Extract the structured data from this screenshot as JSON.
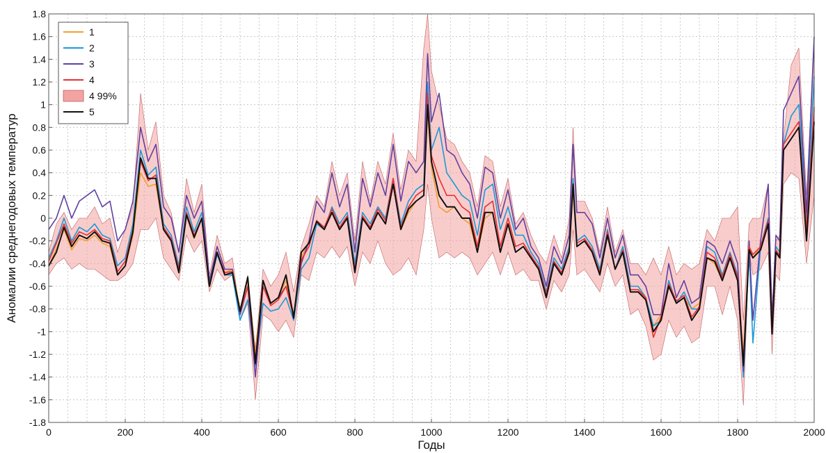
{
  "chart_data": {
    "type": "line",
    "title": "",
    "xlabel": "Годы",
    "ylabel": "Аномалии среднегодовых температур",
    "xlim": [
      0,
      2000
    ],
    "ylim": [
      -1.8,
      1.8
    ],
    "x_ticks": [
      "0",
      "200",
      "400",
      "600",
      "800",
      "1000",
      "1200",
      "1400",
      "1600",
      "1800",
      "2000"
    ],
    "y_ticks": [
      "1.8",
      "1.6",
      "1.4",
      "1.2",
      "1",
      "0.8",
      "0.6",
      "0.4",
      "0.2",
      "0",
      "-0.2",
      "-0.4",
      "-0.6",
      "-0.8",
      "-1",
      "-1.2",
      "-1.4",
      "-1.6",
      "-1.8"
    ],
    "grid": true,
    "legend_position": "top-left",
    "x": [
      0,
      20,
      40,
      60,
      80,
      100,
      120,
      140,
      160,
      180,
      200,
      220,
      240,
      260,
      280,
      300,
      320,
      340,
      360,
      380,
      400,
      420,
      440,
      460,
      480,
      500,
      520,
      540,
      560,
      580,
      600,
      620,
      640,
      660,
      680,
      700,
      720,
      740,
      760,
      780,
      800,
      820,
      840,
      860,
      880,
      900,
      920,
      940,
      960,
      980,
      990,
      1000,
      1020,
      1040,
      1060,
      1080,
      1100,
      1120,
      1140,
      1160,
      1180,
      1200,
      1220,
      1240,
      1260,
      1280,
      1300,
      1320,
      1340,
      1360,
      1370,
      1380,
      1400,
      1420,
      1440,
      1460,
      1480,
      1500,
      1520,
      1540,
      1560,
      1580,
      1600,
      1620,
      1640,
      1660,
      1680,
      1700,
      1720,
      1740,
      1760,
      1780,
      1800,
      1815,
      1830,
      1840,
      1860,
      1880,
      1890,
      1900,
      1910,
      1920,
      1940,
      1960,
      1980,
      2000
    ],
    "band": {
      "name": "4 99%",
      "color": "#f4a3a3",
      "upper": [
        -0.3,
        -0.05,
        0.05,
        -0.1,
        0.0,
        0.0,
        0.1,
        -0.05,
        0.0,
        -0.3,
        -0.1,
        0.1,
        1.1,
        0.6,
        0.85,
        0.2,
        0.05,
        -0.3,
        0.35,
        0.05,
        0.3,
        -0.5,
        -0.15,
        -0.4,
        -0.35,
        -0.85,
        -0.5,
        -1.15,
        -0.45,
        -0.6,
        -0.5,
        -0.3,
        -0.65,
        -0.25,
        -0.05,
        0.2,
        0.1,
        0.5,
        0.2,
        0.4,
        -0.2,
        0.5,
        0.15,
        0.5,
        0.3,
        0.75,
        0.25,
        0.6,
        0.5,
        1.5,
        1.8,
        1.3,
        1.0,
        0.7,
        0.65,
        0.5,
        0.4,
        0.1,
        0.55,
        0.5,
        0.1,
        0.35,
        -0.05,
        0.05,
        -0.15,
        -0.3,
        -0.4,
        -0.15,
        -0.35,
        0.0,
        0.8,
        0.15,
        0.15,
        0.0,
        -0.3,
        0.1,
        -0.3,
        -0.1,
        -0.4,
        -0.4,
        -0.5,
        -0.35,
        -0.5,
        -0.25,
        -0.5,
        -0.4,
        -0.45,
        -0.4,
        -0.1,
        -0.2,
        0.0,
        0.0,
        0.1,
        -0.9,
        -0.05,
        0.0,
        0.0,
        0.3,
        -0.8,
        -0.2,
        -0.15,
        0.7,
        1.35,
        1.5,
        0.2,
        1.6
      ],
      "lower": [
        -0.5,
        -0.4,
        -0.35,
        -0.45,
        -0.4,
        -0.45,
        -0.45,
        -0.5,
        -0.55,
        -0.55,
        -0.5,
        -0.4,
        -0.1,
        -0.1,
        0.0,
        -0.35,
        -0.45,
        -0.55,
        -0.15,
        -0.3,
        -0.2,
        -0.65,
        -0.45,
        -0.55,
        -0.5,
        -0.9,
        -0.75,
        -1.6,
        -0.85,
        -0.9,
        -1.0,
        -0.9,
        -1.05,
        -0.5,
        -0.55,
        -0.3,
        -0.35,
        -0.25,
        -0.35,
        -0.25,
        -0.6,
        -0.3,
        -0.4,
        -0.2,
        -0.4,
        -0.5,
        -0.45,
        -0.35,
        -0.5,
        -0.1,
        0.3,
        0.0,
        -0.35,
        -0.3,
        -0.35,
        -0.3,
        -0.35,
        -0.5,
        -0.4,
        -0.3,
        -0.5,
        -0.3,
        -0.5,
        -0.45,
        -0.55,
        -0.55,
        -0.8,
        -0.55,
        -0.65,
        -0.5,
        -0.1,
        -0.5,
        -0.45,
        -0.55,
        -0.65,
        -0.4,
        -0.6,
        -0.5,
        -0.85,
        -0.8,
        -0.95,
        -1.25,
        -1.2,
        -0.9,
        -1.05,
        -0.95,
        -1.1,
        -1.05,
        -0.6,
        -0.6,
        -0.85,
        -0.6,
        -0.9,
        -1.65,
        -0.3,
        -0.5,
        -0.45,
        -0.3,
        -1.2,
        -0.5,
        -0.55,
        0.3,
        0.4,
        0.35,
        -0.4,
        0.2
      ]
    },
    "series": [
      {
        "name": "1",
        "color": "#f0a030",
        "values": [
          -0.42,
          -0.27,
          -0.1,
          -0.28,
          -0.18,
          -0.2,
          -0.15,
          -0.22,
          -0.25,
          -0.5,
          -0.42,
          -0.15,
          0.4,
          0.28,
          0.3,
          -0.1,
          -0.2,
          -0.48,
          0.02,
          -0.18,
          0.0,
          -0.6,
          -0.3,
          -0.48,
          -0.45,
          -0.8,
          -0.55,
          -1.2,
          -0.55,
          -0.75,
          -0.7,
          -0.55,
          -0.85,
          -0.35,
          -0.2,
          -0.05,
          -0.1,
          0.05,
          -0.1,
          0.0,
          -0.45,
          0.0,
          -0.1,
          0.05,
          -0.05,
          0.3,
          -0.1,
          0.05,
          0.15,
          0.2,
          0.95,
          0.45,
          0.1,
          0.05,
          0.1,
          0.0,
          -0.05,
          -0.3,
          0.0,
          0.05,
          -0.3,
          -0.05,
          -0.3,
          -0.25,
          -0.35,
          -0.45,
          -0.65,
          -0.4,
          -0.5,
          -0.3,
          0.25,
          -0.25,
          -0.2,
          -0.3,
          -0.5,
          -0.15,
          -0.45,
          -0.3,
          -0.65,
          -0.65,
          -0.7,
          -0.95,
          -0.85,
          -0.6,
          -0.75,
          -0.7,
          -0.8,
          -0.75,
          -0.35,
          -0.4,
          -0.55,
          -0.35,
          -0.55,
          -1.2,
          -0.25,
          -0.35,
          -0.25,
          -0.05,
          -0.9,
          -0.3,
          -0.35,
          0.6,
          0.7,
          0.8,
          -0.1,
          0.95
        ]
      },
      {
        "name": "2",
        "color": "#1a9ad6",
        "values": [
          -0.35,
          -0.2,
          0.0,
          -0.2,
          -0.08,
          -0.12,
          -0.05,
          -0.15,
          -0.18,
          -0.42,
          -0.35,
          -0.05,
          0.6,
          0.38,
          0.45,
          -0.05,
          -0.15,
          -0.42,
          0.1,
          -0.12,
          0.05,
          -0.6,
          -0.32,
          -0.5,
          -0.5,
          -0.9,
          -0.72,
          -1.3,
          -0.75,
          -0.82,
          -0.8,
          -0.7,
          -0.9,
          -0.45,
          -0.35,
          -0.05,
          -0.1,
          0.1,
          -0.05,
          0.05,
          -0.4,
          0.05,
          -0.05,
          0.1,
          0.0,
          0.35,
          -0.05,
          0.15,
          0.25,
          0.3,
          1.2,
          0.6,
          0.8,
          0.4,
          0.3,
          0.2,
          0.15,
          -0.15,
          0.25,
          0.3,
          -0.1,
          0.1,
          -0.15,
          -0.15,
          -0.3,
          -0.4,
          -0.65,
          -0.35,
          -0.45,
          -0.25,
          0.35,
          -0.2,
          -0.15,
          -0.25,
          -0.45,
          -0.1,
          -0.45,
          -0.25,
          -0.6,
          -0.6,
          -0.7,
          -0.95,
          -0.9,
          -0.55,
          -0.75,
          -0.65,
          -0.8,
          -0.8,
          -0.25,
          -0.3,
          -0.5,
          -0.3,
          -0.5,
          -1.4,
          -0.3,
          -1.1,
          -0.25,
          0.0,
          -0.95,
          -0.25,
          -0.3,
          0.65,
          0.9,
          1.0,
          0.0,
          1.25
        ]
      },
      {
        "name": "3",
        "color": "#6040a0",
        "values": [
          -0.1,
          0.0,
          0.2,
          0.0,
          0.15,
          0.2,
          0.25,
          0.1,
          0.15,
          -0.2,
          -0.1,
          0.15,
          0.8,
          0.5,
          0.65,
          0.1,
          0.0,
          -0.3,
          0.2,
          0.0,
          0.15,
          -0.55,
          -0.25,
          -0.45,
          -0.45,
          -0.85,
          -0.6,
          -1.4,
          -0.6,
          -0.75,
          -0.7,
          -0.6,
          -0.85,
          -0.4,
          -0.2,
          0.15,
          0.05,
          0.4,
          0.1,
          0.3,
          -0.3,
          0.35,
          0.1,
          0.4,
          0.2,
          0.65,
          0.15,
          0.5,
          0.4,
          0.5,
          1.45,
          0.85,
          1.1,
          0.6,
          0.55,
          0.4,
          0.3,
          0.0,
          0.45,
          0.4,
          0.0,
          0.25,
          -0.1,
          0.0,
          -0.25,
          -0.35,
          -0.6,
          -0.25,
          -0.4,
          -0.15,
          0.65,
          0.05,
          0.05,
          -0.05,
          -0.35,
          0.0,
          -0.35,
          -0.15,
          -0.5,
          -0.5,
          -0.6,
          -0.85,
          -0.85,
          -0.4,
          -0.7,
          -0.55,
          -0.75,
          -0.7,
          -0.2,
          -0.25,
          -0.4,
          -0.2,
          -0.4,
          -1.35,
          -0.2,
          -0.9,
          -0.2,
          0.3,
          -0.9,
          -0.15,
          -0.2,
          0.95,
          1.1,
          1.25,
          0.05,
          1.6
        ]
      },
      {
        "name": "4",
        "color": "#e83030",
        "values": [
          -0.38,
          -0.22,
          -0.05,
          -0.22,
          -0.12,
          -0.15,
          -0.1,
          -0.18,
          -0.2,
          -0.47,
          -0.38,
          -0.1,
          0.5,
          0.33,
          0.38,
          -0.08,
          -0.18,
          -0.45,
          0.05,
          -0.15,
          0.0,
          -0.6,
          -0.3,
          -0.48,
          -0.47,
          -0.82,
          -0.6,
          -1.25,
          -0.6,
          -0.77,
          -0.72,
          -0.6,
          -0.87,
          -0.37,
          -0.25,
          -0.02,
          -0.08,
          0.08,
          -0.08,
          0.02,
          -0.45,
          0.02,
          -0.08,
          0.08,
          -0.02,
          0.35,
          -0.08,
          0.1,
          0.2,
          0.25,
          1.1,
          0.55,
          0.35,
          0.2,
          0.2,
          0.1,
          0.05,
          -0.25,
          0.1,
          0.15,
          -0.25,
          0.0,
          -0.25,
          -0.22,
          -0.33,
          -0.43,
          -0.67,
          -0.38,
          -0.48,
          -0.28,
          0.3,
          -0.22,
          -0.18,
          -0.28,
          -0.48,
          -0.12,
          -0.45,
          -0.28,
          -0.63,
          -0.63,
          -0.7,
          -1.05,
          -0.87,
          -0.58,
          -0.73,
          -0.68,
          -0.87,
          -0.78,
          -0.3,
          -0.35,
          -0.52,
          -0.32,
          -0.52,
          -1.25,
          -0.25,
          -0.32,
          -0.25,
          -0.02,
          -1.0,
          -0.28,
          -0.33,
          0.65,
          0.75,
          0.85,
          -0.1,
          0.98
        ]
      },
      {
        "name": "5",
        "color": "#111111",
        "values": [
          -0.42,
          -0.3,
          -0.08,
          -0.25,
          -0.15,
          -0.18,
          -0.12,
          -0.2,
          -0.22,
          -0.5,
          -0.42,
          -0.12,
          0.53,
          0.35,
          0.35,
          -0.1,
          -0.2,
          -0.48,
          0.03,
          -0.17,
          0.0,
          -0.6,
          -0.3,
          -0.5,
          -0.48,
          -0.82,
          -0.52,
          -1.28,
          -0.55,
          -0.75,
          -0.7,
          -0.5,
          -0.88,
          -0.3,
          -0.22,
          -0.03,
          -0.1,
          0.05,
          -0.1,
          0.0,
          -0.48,
          0.0,
          -0.1,
          0.05,
          -0.05,
          0.3,
          -0.1,
          0.08,
          0.15,
          0.2,
          1.0,
          0.5,
          0.2,
          0.1,
          0.1,
          0.0,
          0.0,
          -0.3,
          0.05,
          0.05,
          -0.3,
          -0.05,
          -0.3,
          -0.25,
          -0.35,
          -0.45,
          -0.7,
          -0.4,
          -0.5,
          -0.3,
          0.3,
          -0.25,
          -0.2,
          -0.3,
          -0.5,
          -0.15,
          -0.45,
          -0.3,
          -0.65,
          -0.65,
          -0.72,
          -1.0,
          -0.9,
          -0.6,
          -0.75,
          -0.7,
          -0.9,
          -0.8,
          -0.35,
          -0.38,
          -0.55,
          -0.35,
          -0.55,
          -1.3,
          -0.28,
          -0.35,
          -0.28,
          -0.05,
          -1.02,
          -0.3,
          -0.35,
          0.6,
          0.7,
          0.8,
          -0.2,
          0.85
        ]
      }
    ]
  }
}
